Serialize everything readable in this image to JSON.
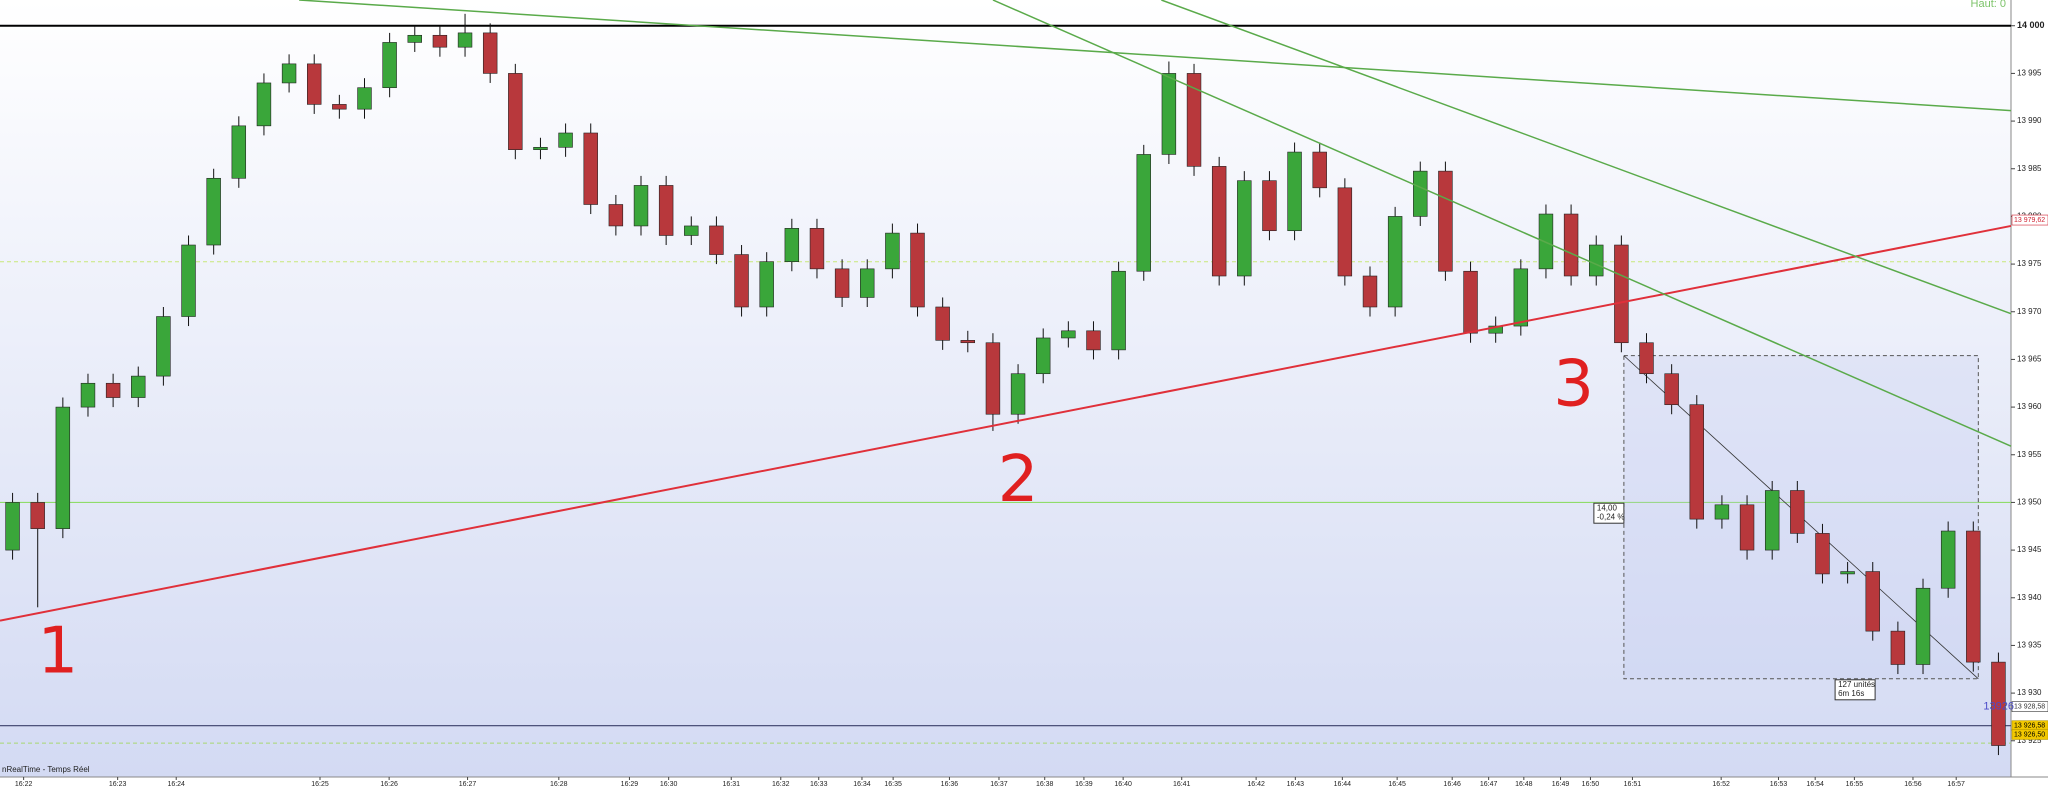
{
  "chart_data": {
    "type": "candlestick",
    "open": [
      13945.0,
      13950.0,
      13947.25,
      13960.0,
      13962.5,
      13961.0,
      13963.25,
      13969.5,
      13977.0,
      13984.0,
      13989.5,
      13994.0,
      13996.0,
      13991.75,
      13991.25,
      13993.5,
      13998.25,
      13999.0,
      13997.75,
      13999.25,
      13995.0,
      13987.0,
      13987.25,
      13988.75,
      13981.25,
      13979.0,
      13983.25,
      13978.0,
      13979.0,
      13976.0,
      13970.5,
      13975.25,
      13978.75,
      13974.5,
      13971.5,
      13974.5,
      13978.25,
      13970.5,
      13967.0,
      13966.75,
      13959.25,
      13963.5,
      13967.25,
      13968.0,
      13966.0,
      13974.25,
      13986.5,
      13995.0,
      13985.25,
      13973.75,
      13983.75,
      13978.5,
      13986.75,
      13983.0,
      13973.75,
      13970.5,
      13980.0,
      13984.75,
      13974.25,
      13967.75,
      13968.5,
      13974.5,
      13980.25,
      13973.75,
      13977.0,
      13966.75,
      13963.5,
      13960.25,
      13948.25,
      13949.75,
      13945.0,
      13951.25,
      13946.75,
      13942.5,
      13942.75,
      13936.5,
      13933.0,
      13941.0,
      13947.0,
      13933.25
    ],
    "high": [
      13951.0,
      13951.0,
      13961.0,
      13963.5,
      13963.5,
      13964.25,
      13970.5,
      13978.0,
      13985.0,
      13990.5,
      13995.0,
      13997.0,
      13997.0,
      13992.75,
      13994.5,
      13999.25,
      14000.0,
      14000.0,
      14001.25,
      14000.25,
      13996.0,
      13988.25,
      13989.75,
      13989.75,
      13982.25,
      13984.25,
      13984.25,
      13980.0,
      13980.0,
      13977.0,
      13976.25,
      13979.75,
      13979.75,
      13975.5,
      13975.5,
      13979.25,
      13979.25,
      13971.5,
      13968.0,
      13967.75,
      13964.5,
      13968.25,
      13969.0,
      13969.0,
      13975.25,
      13987.5,
      13996.25,
      13996.0,
      13986.25,
      13984.75,
      13984.75,
      13987.75,
      13987.75,
      13984.0,
      13974.75,
      13981.0,
      13985.75,
      13985.75,
      13975.25,
      13969.5,
      13975.5,
      13981.25,
      13981.25,
      13978.0,
      13978.0,
      13967.75,
      13964.5,
      13961.25,
      13950.75,
      13950.75,
      13952.25,
      13952.25,
      13947.75,
      13943.75,
      13943.75,
      13937.5,
      13942.0,
      13948.0,
      13948.0,
      13934.25
    ],
    "low": [
      13944.0,
      13939.0,
      13946.25,
      13959.0,
      13960.0,
      13960.0,
      13962.25,
      13968.5,
      13976.0,
      13983.0,
      13988.5,
      13993.0,
      13990.75,
      13990.25,
      13990.25,
      13992.5,
      13997.25,
      13996.75,
      13996.75,
      13994.0,
      13986.0,
      13986.0,
      13986.25,
      13980.25,
      13978.0,
      13978.0,
      13977.0,
      13977.0,
      13975.0,
      13969.5,
      13969.5,
      13974.25,
      13973.5,
      13970.5,
      13970.5,
      13973.5,
      13969.5,
      13966.0,
      13965.75,
      13957.5,
      13958.25,
      13962.5,
      13966.25,
      13965.0,
      13965.0,
      13973.25,
      13985.5,
      13984.25,
      13972.75,
      13972.75,
      13977.5,
      13977.5,
      13982.0,
      13972.75,
      13969.5,
      13969.5,
      13979.0,
      13973.25,
      13966.75,
      13966.75,
      13967.5,
      13973.5,
      13972.75,
      13972.75,
      13965.75,
      13962.5,
      13959.25,
      13947.25,
      13947.25,
      13944.0,
      13944.0,
      13945.75,
      13941.5,
      13941.5,
      13935.5,
      13932.0,
      13932.0,
      13940.0,
      13932.25,
      13923.5
    ],
    "close": [
      13950.0,
      13947.25,
      13960.0,
      13962.5,
      13961.0,
      13963.25,
      13969.5,
      13977.0,
      13984.0,
      13989.5,
      13994.0,
      13996.0,
      13991.75,
      13991.25,
      13993.5,
      13998.25,
      13999.0,
      13997.75,
      13999.25,
      13995.0,
      13987.0,
      13987.25,
      13988.75,
      13981.25,
      13979.0,
      13983.25,
      13978.0,
      13979.0,
      13976.0,
      13970.5,
      13975.25,
      13978.75,
      13974.5,
      13971.5,
      13974.5,
      13978.25,
      13970.5,
      13967.0,
      13966.75,
      13959.25,
      13963.5,
      13967.25,
      13968.0,
      13966.0,
      13974.25,
      13986.5,
      13995.0,
      13985.25,
      13973.75,
      13983.75,
      13978.5,
      13986.75,
      13983.0,
      13973.75,
      13970.5,
      13980.0,
      13984.75,
      13974.25,
      13967.75,
      13968.5,
      13974.5,
      13980.25,
      13973.75,
      13977.0,
      13966.75,
      13963.5,
      13960.25,
      13948.25,
      13949.75,
      13945.0,
      13951.25,
      13946.75,
      13942.5,
      13942.75,
      13936.5,
      13933.0,
      13941.0,
      13947.0,
      13933.25,
      13924.5
    ],
    "up_color": "#3aa63a",
    "down_color": "#b8383c",
    "wick_color": "#111111",
    "xlim": [
      0,
      80
    ],
    "ylim": [
      13921.2,
      14002.7
    ],
    "yticks": [
      {
        "value": 13925,
        "label": "13 925"
      },
      {
        "value": 13930,
        "label": "13 930"
      },
      {
        "value": 13935,
        "label": "13 935"
      },
      {
        "value": 13940,
        "label": "13 940"
      },
      {
        "value": 13945,
        "label": "13 945"
      },
      {
        "value": 13950,
        "label": "13 950"
      },
      {
        "value": 13955,
        "label": "13 955"
      },
      {
        "value": 13960,
        "label": "13 960"
      },
      {
        "value": 13965,
        "label": "13 965"
      },
      {
        "value": 13970,
        "label": "13 970"
      },
      {
        "value": 13975,
        "label": "13 975"
      },
      {
        "value": 13980,
        "label": "13 980"
      },
      {
        "value": 13985,
        "label": "13 985"
      },
      {
        "value": 13990,
        "label": "13 990"
      },
      {
        "value": 13995,
        "label": "13 995"
      },
      {
        "value": 14000,
        "label": "14 000"
      }
    ],
    "xticks": [
      {
        "value": 0.94,
        "label": "16:22"
      },
      {
        "value": 4.68,
        "label": "16:23"
      },
      {
        "value": 7.01,
        "label": "16:24"
      },
      {
        "value": 12.73,
        "label": "16:25"
      },
      {
        "value": 15.48,
        "label": "16:26"
      },
      {
        "value": 18.6,
        "label": "16:27"
      },
      {
        "value": 22.23,
        "label": "16:28"
      },
      {
        "value": 25.04,
        "label": "16:29"
      },
      {
        "value": 26.6,
        "label": "16:30"
      },
      {
        "value": 29.09,
        "label": "16:31"
      },
      {
        "value": 31.06,
        "label": "16:32"
      },
      {
        "value": 32.57,
        "label": "16:33"
      },
      {
        "value": 34.29,
        "label": "16:34"
      },
      {
        "value": 35.53,
        "label": "16:35"
      },
      {
        "value": 37.77,
        "label": "16:36"
      },
      {
        "value": 39.74,
        "label": "16:37"
      },
      {
        "value": 41.56,
        "label": "16:38"
      },
      {
        "value": 43.12,
        "label": "16:39"
      },
      {
        "value": 44.68,
        "label": "16:40"
      },
      {
        "value": 47.01,
        "label": "16:41"
      },
      {
        "value": 49.97,
        "label": "16:42"
      },
      {
        "value": 51.53,
        "label": "16:43"
      },
      {
        "value": 53.4,
        "label": "16:44"
      },
      {
        "value": 55.58,
        "label": "16:45"
      },
      {
        "value": 57.77,
        "label": "16:46"
      },
      {
        "value": 59.22,
        "label": "16:47"
      },
      {
        "value": 60.62,
        "label": "16:48"
      },
      {
        "value": 62.08,
        "label": "16:49"
      },
      {
        "value": 63.27,
        "label": "16:50"
      },
      {
        "value": 64.94,
        "label": "16:51"
      },
      {
        "value": 68.47,
        "label": "16:52"
      },
      {
        "value": 70.75,
        "label": "16:53"
      },
      {
        "value": 72.21,
        "label": "16:54"
      },
      {
        "value": 73.77,
        "label": "16:55"
      },
      {
        "value": 76.1,
        "label": "16:56"
      },
      {
        "value": 77.82,
        "label": "16:57"
      }
    ],
    "hlines": [
      {
        "value": 14000,
        "color": "#000000",
        "dashed": false
      },
      {
        "value": 13950,
        "color": "#8fdc6a",
        "dashed": false
      },
      {
        "value": 13926.58,
        "color": "#3a3f6a",
        "dashed": false
      },
      {
        "value": 13975.25,
        "color": "#c8e87a",
        "dashed": true
      },
      {
        "value": 13924.75,
        "color": "#a8d870",
        "dashed": true
      }
    ],
    "trend_lines": [
      {
        "color": "#e0303a",
        "points": [
          [
            0,
            13937.6
          ],
          [
            80,
            13979.0
          ]
        ]
      },
      {
        "color": "#5aaa4a",
        "points": [
          [
            11.9,
            14002.7
          ],
          [
            80,
            13991.1
          ]
        ]
      },
      {
        "color": "#5aaa4a",
        "points": [
          [
            39.5,
            14002.7
          ],
          [
            80,
            13955.9
          ]
        ]
      },
      {
        "color": "#5aaa4a",
        "points": [
          [
            46.2,
            14002.7
          ],
          [
            80,
            13969.8
          ]
        ]
      }
    ],
    "measure": {
      "x": [
        64.6,
        78.7
      ],
      "y": [
        13931.5,
        13965.4
      ],
      "labels": [
        "14,00",
        "-0,24 %",
        "127 unités",
        "6m 16s"
      ]
    },
    "annotations": [
      {
        "text": "1",
        "x": 2.3,
        "y": 13934
      },
      {
        "text": "2",
        "x": 40.5,
        "y": 13952
      },
      {
        "text": "3",
        "x": 62.6,
        "y": 13962
      }
    ],
    "price_tags": [
      {
        "value": 13979.62,
        "label": "13 979,62",
        "color": "#d02030"
      },
      {
        "value": 13928.58,
        "label": "13 928,58",
        "color": "#333333"
      },
      {
        "value": 13926.58,
        "label": "13 926,58",
        "color": "#f2c800"
      },
      {
        "value": 13926.5,
        "label": "13 926,50",
        "color": "#f2c800"
      }
    ],
    "last_marker": {
      "text": "13926",
      "x": 78.9,
      "y": 13928.6
    },
    "top_label": "Haut: 0",
    "source": "nRealTime - Temps Réel"
  }
}
